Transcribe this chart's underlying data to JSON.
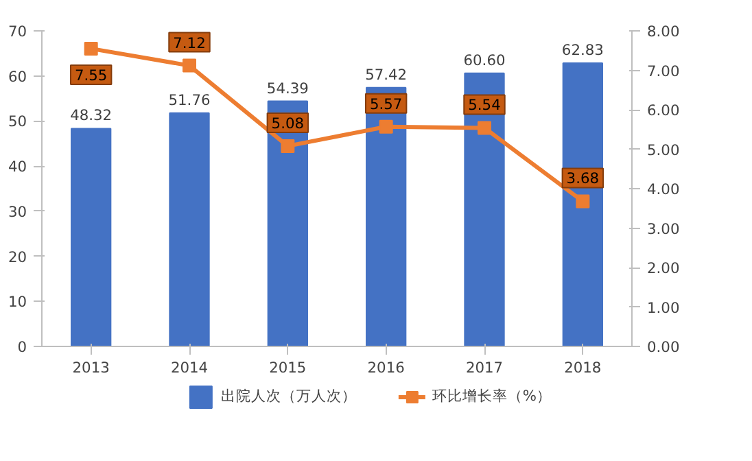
{
  "chart_data": {
    "type": "bar",
    "categories": [
      "2013",
      "2014",
      "2015",
      "2016",
      "2017",
      "2018"
    ],
    "series": [
      {
        "name": "出院人次（万人次）",
        "color": "#4472c4",
        "values": [
          48.32,
          51.76,
          54.39,
          57.42,
          60.6,
          62.83
        ],
        "value_labels": [
          "48.32",
          "51.76",
          "54.39",
          "57.42",
          "60.60",
          "62.83"
        ]
      },
      {
        "name": "环比增长率（%）",
        "type": "line",
        "axis": "y2",
        "color": "#ed7d31",
        "values": [
          7.55,
          7.12,
          5.08,
          5.57,
          5.54,
          3.68
        ],
        "value_labels": [
          "7.55",
          "7.12",
          "5.08",
          "5.57",
          "5.54",
          "3.68"
        ]
      }
    ],
    "ylim": [
      0,
      70
    ],
    "yticks": [
      0,
      10,
      20,
      30,
      40,
      50,
      60,
      70
    ],
    "y2lim": [
      0,
      8
    ],
    "y2ticks": [
      {
        "value": 0,
        "label": "0.00"
      },
      {
        "value": 1,
        "label": "1.00"
      },
      {
        "value": 2,
        "label": "2.00"
      },
      {
        "value": 3,
        "label": "3.00"
      },
      {
        "value": 4,
        "label": "4.00"
      },
      {
        "value": 5,
        "label": "5.00"
      },
      {
        "value": 6,
        "label": "6.00"
      },
      {
        "value": 7,
        "label": "7.00"
      },
      {
        "value": 8,
        "label": "8.00"
      }
    ],
    "grid": false,
    "legend": "bottom",
    "marker": "square",
    "line_style": "solid"
  }
}
